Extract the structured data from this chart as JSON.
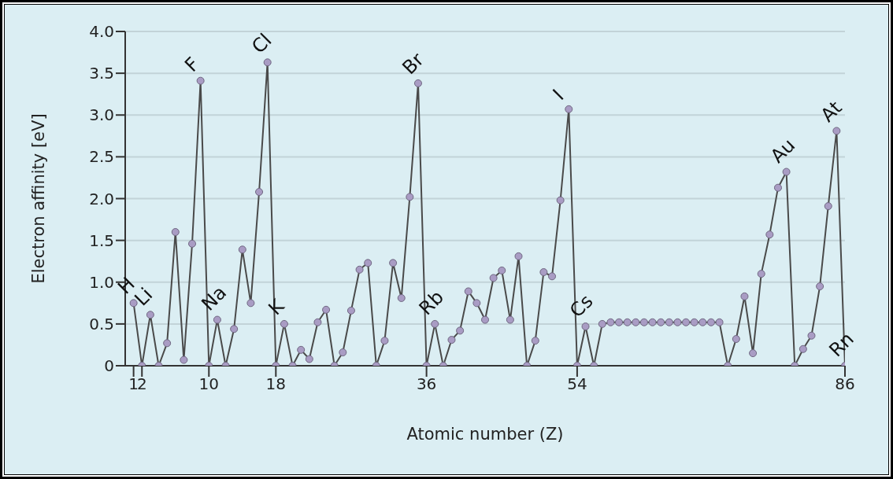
{
  "chart_data": {
    "type": "line",
    "xlabel": "Atomic number (Z)",
    "ylabel": "Electron affinity [eV]",
    "x": [
      1,
      2,
      3,
      4,
      5,
      6,
      7,
      8,
      9,
      10,
      11,
      12,
      13,
      14,
      15,
      16,
      17,
      18,
      19,
      20,
      21,
      22,
      23,
      24,
      25,
      26,
      27,
      28,
      29,
      30,
      31,
      32,
      33,
      34,
      35,
      36,
      37,
      38,
      39,
      40,
      41,
      42,
      43,
      44,
      45,
      46,
      47,
      48,
      49,
      50,
      51,
      52,
      53,
      54,
      55,
      56,
      57,
      58,
      59,
      60,
      61,
      62,
      63,
      64,
      65,
      66,
      67,
      68,
      69,
      70,
      71,
      72,
      73,
      74,
      75,
      76,
      77,
      78,
      79,
      80,
      81,
      82,
      83,
      84,
      85,
      86
    ],
    "series": [
      {
        "color": "#a99cc4",
        "values": [
          0.75,
          0,
          0.61,
          0,
          0.27,
          1.6,
          0.07,
          1.46,
          3.41,
          0,
          0.55,
          0,
          0.44,
          1.39,
          0.75,
          2.08,
          3.63,
          0,
          0.5,
          0,
          0.19,
          0.08,
          0.52,
          0.67,
          0,
          0.16,
          0.66,
          1.15,
          1.23,
          0,
          0.3,
          1.23,
          0.81,
          2.02,
          3.38,
          0,
          0.5,
          0,
          0.31,
          0.42,
          0.89,
          0.75,
          0.55,
          1.05,
          1.14,
          0.55,
          1.31,
          0,
          0.3,
          1.12,
          1.07,
          1.98,
          3.07,
          0,
          0.47,
          0,
          0.5,
          0.52,
          0.52,
          0.52,
          0.52,
          0.52,
          0.52,
          0.52,
          0.52,
          0.52,
          0.52,
          0.52,
          0.52,
          0.52,
          0.52,
          0,
          0.32,
          0.83,
          0.15,
          1.1,
          1.57,
          2.13,
          2.32,
          0,
          0.2,
          0.36,
          0.95,
          1.91,
          2.81,
          0
        ]
      }
    ],
    "xlim": [
      0,
      86
    ],
    "xticks": [
      1,
      2,
      10,
      18,
      36,
      54,
      86
    ],
    "ylim": [
      0,
      4
    ],
    "yticks": [
      0,
      0.5,
      {
        "value": 1,
        "label": "1.0"
      },
      1.5,
      {
        "value": 2,
        "label": "2.0"
      },
      2.5,
      {
        "value": 3,
        "label": "3.0"
      },
      3.5,
      {
        "value": 4,
        "label": "4.0"
      }
    ],
    "grid": "y",
    "marker": "circle",
    "line_style": "solid",
    "annotations": [
      {
        "text": "H",
        "x": 1,
        "y": 0.75
      },
      {
        "text": "Li",
        "x": 3,
        "y": 0.61
      },
      {
        "text": "F",
        "x": 9,
        "y": 3.41
      },
      {
        "text": "Na",
        "x": 11,
        "y": 0.55
      },
      {
        "text": "Cl",
        "x": 17,
        "y": 3.63
      },
      {
        "text": "K",
        "x": 19,
        "y": 0.5
      },
      {
        "text": "Br",
        "x": 35,
        "y": 3.38
      },
      {
        "text": "Rb",
        "x": 37,
        "y": 0.5
      },
      {
        "text": "I",
        "x": 53,
        "y": 3.07
      },
      {
        "text": "Cs",
        "x": 55,
        "y": 0.47
      },
      {
        "text": "Au",
        "x": 79,
        "y": 2.32
      },
      {
        "text": "At",
        "x": 85,
        "y": 2.81
      },
      {
        "text": "Rn",
        "x": 86,
        "y": 0
      }
    ]
  }
}
